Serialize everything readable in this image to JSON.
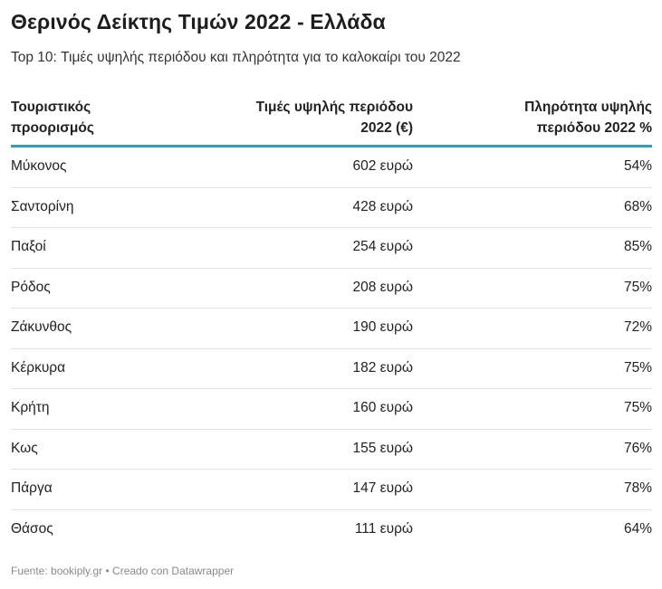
{
  "title": "Θερινός Δείκτης Τιμών 2022 - Ελλάδα",
  "subtitle": "Top 10: Τιμές υψηλής περιόδου και πληρότητα για το καλοκαίρι του 2022",
  "chart_data": {
    "type": "table",
    "columns": [
      "Τουριστικός προορισμός",
      "Τιμές υψηλής περιόδου 2022 (€)",
      "Πληρότητα υψηλής περιόδου 2022 %"
    ],
    "rows": [
      {
        "destination": "Μύκονος",
        "price": "602 ευρώ",
        "occupancy": "54%"
      },
      {
        "destination": "Σαντορίνη",
        "price": "428 ευρώ",
        "occupancy": "68%"
      },
      {
        "destination": "Παξοί",
        "price": "254 ευρώ",
        "occupancy": "85%"
      },
      {
        "destination": "Ρόδος",
        "price": "208 ευρώ",
        "occupancy": "75%"
      },
      {
        "destination": "Ζάκυνθος",
        "price": "190 ευρώ",
        "occupancy": "72%"
      },
      {
        "destination": "Κέρκυρα",
        "price": "182 ευρώ",
        "occupancy": "75%"
      },
      {
        "destination": "Κρήτη",
        "price": "160 ευρώ",
        "occupancy": "75%"
      },
      {
        "destination": "Κως",
        "price": "155 ευρώ",
        "occupancy": "76%"
      },
      {
        "destination": "Πάργα",
        "price": "147 ευρώ",
        "occupancy": "78%"
      },
      {
        "destination": "Θάσος",
        "price": "111 ευρώ",
        "occupancy": "64%"
      }
    ]
  },
  "footer": "Fuente: bookiply.gr • Creado con Datawrapper",
  "colors": {
    "header_rule": "#2e9fba",
    "row_divider": "#e3e3e3",
    "footer_text": "#8a8a8a"
  }
}
